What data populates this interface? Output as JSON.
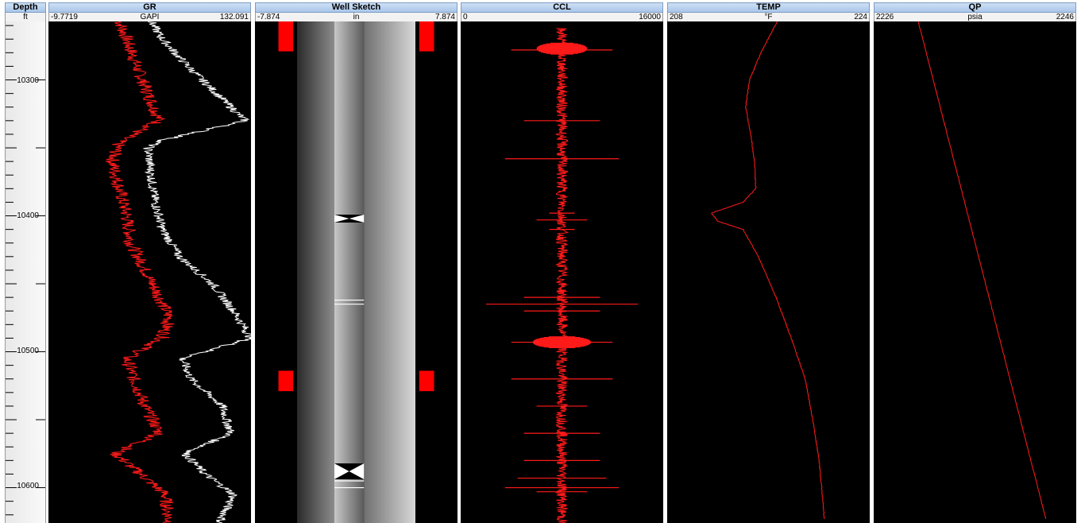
{
  "depth_track": {
    "title": "Depth",
    "unit": "ft",
    "labels": [
      "10300",
      "10400",
      "10500",
      "10600"
    ]
  },
  "tracks": {
    "gr": {
      "title": "GR",
      "min": "-9.7719",
      "unit": "GAPI",
      "max": "132.091"
    },
    "sketch": {
      "title": "Well Sketch",
      "min": "-7.874",
      "unit": "in",
      "max": "7.874"
    },
    "ccl": {
      "title": "CCL",
      "min": "0",
      "unit": "",
      "max": "16000"
    },
    "temp": {
      "title": "TEMP",
      "min": "208",
      "unit": "°F",
      "max": "224"
    },
    "qp": {
      "title": "QP",
      "min": "2226",
      "unit": "psia",
      "max": "2246"
    }
  },
  "colors": {
    "curve_red": "#ff1a1a",
    "curve_white": "#ffffff",
    "marker_red": "#ff0000",
    "plot_bg": "#000000"
  },
  "chart_data": {
    "type": "line",
    "depth_unit": "ft",
    "depth_range": [
      10257,
      10626
    ],
    "series": [
      {
        "track": "GR",
        "color": "red",
        "unit": "GAPI",
        "xlim": [
          -9.7719,
          132.091
        ],
        "depth": [
          10257,
          10270,
          10290,
          10310,
          10330,
          10345,
          10360,
          10380,
          10400,
          10420,
          10440,
          10460,
          10475,
          10490,
          10505,
          10520,
          10540,
          10560,
          10575,
          10590,
          10605,
          10626
        ],
        "values": [
          40,
          45,
          52,
          60,
          68,
          40,
          35,
          40,
          45,
          48,
          58,
          68,
          75,
          70,
          45,
          50,
          58,
          68,
          37,
          55,
          72,
          75
        ]
      },
      {
        "track": "GR",
        "color": "white",
        "unit": "GAPI",
        "xlim": [
          -9.7719,
          132.091
        ],
        "depth": [
          10257,
          10270,
          10290,
          10310,
          10330,
          10345,
          10350,
          10370,
          10390,
          10410,
          10430,
          10450,
          10470,
          10490,
          10505,
          10520,
          10540,
          10560,
          10575,
          10590,
          10605,
          10626
        ],
        "values": [
          62,
          70,
          88,
          108,
          128,
          68,
          60,
          62,
          65,
          70,
          82,
          105,
          120,
          132,
          84,
          90,
          112,
          118,
          86,
          100,
          120,
          110
        ]
      },
      {
        "track": "TEMP",
        "color": "red",
        "unit": "°F",
        "xlim": [
          208,
          224
        ],
        "depth": [
          10257,
          10280,
          10300,
          10320,
          10340,
          10360,
          10380,
          10390,
          10398,
          10404,
          10410,
          10430,
          10460,
          10490,
          10520,
          10550,
          10580,
          10610,
          10623
        ],
        "values": [
          216.7,
          215.4,
          214.5,
          214.2,
          214.6,
          214.9,
          215.0,
          214.0,
          211.5,
          212.0,
          214.0,
          215.2,
          216.6,
          217.8,
          218.9,
          219.5,
          220.0,
          220.3,
          220.4
        ]
      },
      {
        "track": "QP",
        "color": "red",
        "unit": "psia",
        "xlim": [
          2226,
          2246
        ],
        "depth": [
          10257,
          10623
        ],
        "values": [
          2230.4,
          2243.0
        ]
      }
    ],
    "ccl": {
      "track": "CCL",
      "xlim": [
        0,
        16000
      ],
      "collar_depths": [
        10278,
        10330,
        10358,
        10398,
        10403,
        10410,
        10460,
        10465,
        10470,
        10493,
        10520,
        10540,
        10560,
        10580,
        10593,
        10600,
        10603
      ],
      "collar_spike_values": [
        4000,
        5000,
        3500,
        9000,
        6000,
        9000,
        5000,
        14000,
        11000,
        4000,
        4000,
        6000,
        5000,
        11000,
        4500,
        12500,
        6000
      ]
    },
    "well_sketch": {
      "track": "Well Sketch",
      "xlim": [
        -7.874,
        7.874
      ],
      "red_markers_depth": [
        [
          10257,
          10279
        ],
        [
          10514,
          10529
        ]
      ],
      "bowtie_depths": [
        10402,
        10588
      ],
      "line_depths": [
        10462,
        10465,
        10595,
        10600
      ]
    }
  }
}
